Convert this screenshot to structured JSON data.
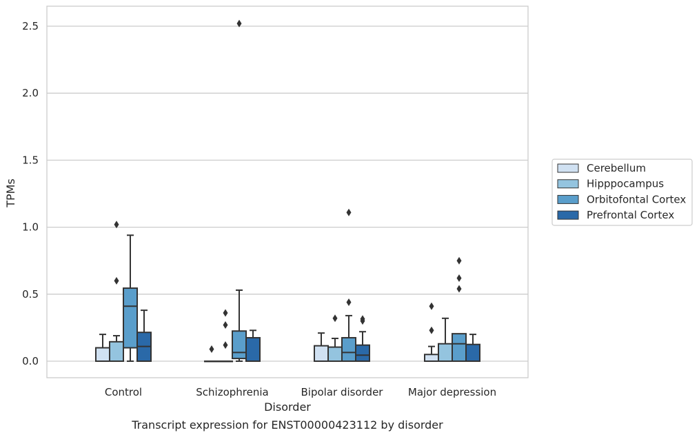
{
  "chart_data": {
    "type": "box",
    "title": "Transcript expression for ENST00000423112 by disorder",
    "xlabel": "Disorder",
    "ylabel": "TPMs",
    "categories": [
      "Control",
      "Schizophrenia",
      "Bipolar disorder",
      "Major depression"
    ],
    "yticks": [
      "0.0",
      "0.5",
      "1.0",
      "1.5",
      "2.0",
      "2.5"
    ],
    "ylim": [
      -0.12,
      2.65
    ],
    "grid": "horizontal",
    "legend_position": "right",
    "series": [
      {
        "name": "Cerebellum",
        "color": "#d0e1f2",
        "boxes": [
          {
            "whisker_low": 0.0,
            "q1": 0.0,
            "median": 0.0,
            "q3": 0.1,
            "whisker_high": 0.2,
            "outliers": []
          },
          {
            "whisker_low": 0.0,
            "q1": 0.0,
            "median": 0.0,
            "q3": 0.0,
            "whisker_high": 0.0,
            "outliers": [
              0.09
            ]
          },
          {
            "whisker_low": 0.0,
            "q1": 0.0,
            "median": 0.0,
            "q3": 0.115,
            "whisker_high": 0.21,
            "outliers": []
          },
          {
            "whisker_low": 0.0,
            "q1": 0.0,
            "median": 0.0,
            "q3": 0.05,
            "whisker_high": 0.11,
            "outliers": [
              0.23,
              0.41
            ]
          }
        ]
      },
      {
        "name": "Hipppocampus",
        "color": "#94c4df",
        "boxes": [
          {
            "whisker_low": 0.0,
            "q1": 0.0,
            "median": 0.0,
            "q3": 0.145,
            "whisker_high": 0.19,
            "outliers": [
              0.6,
              1.02
            ]
          },
          {
            "whisker_low": 0.0,
            "q1": 0.0,
            "median": 0.0,
            "q3": 0.0,
            "whisker_high": 0.0,
            "outliers": [
              0.12,
              0.27,
              0.36
            ]
          },
          {
            "whisker_low": 0.0,
            "q1": 0.0,
            "median": 0.0,
            "q3": 0.105,
            "whisker_high": 0.17,
            "outliers": [
              0.32
            ]
          },
          {
            "whisker_low": 0.0,
            "q1": 0.0,
            "median": 0.0,
            "q3": 0.13,
            "whisker_high": 0.32,
            "outliers": []
          }
        ]
      },
      {
        "name": "Orbitofontal Cortex",
        "color": "#5a9ecb",
        "boxes": [
          {
            "whisker_low": 0.0,
            "q1": 0.1,
            "median": 0.41,
            "q3": 0.545,
            "whisker_high": 0.94,
            "outliers": []
          },
          {
            "whisker_low": 0.0,
            "q1": 0.02,
            "median": 0.065,
            "q3": 0.225,
            "whisker_high": 0.53,
            "outliers": [
              2.52
            ]
          },
          {
            "whisker_low": 0.0,
            "q1": 0.0,
            "median": 0.065,
            "q3": 0.175,
            "whisker_high": 0.34,
            "outliers": [
              0.44,
              1.11
            ]
          },
          {
            "whisker_low": 0.0,
            "q1": 0.0,
            "median": 0.13,
            "q3": 0.205,
            "whisker_high": 0.205,
            "outliers": [
              0.54,
              0.62,
              0.75
            ]
          }
        ]
      },
      {
        "name": "Prefrontal Cortex",
        "color": "#2a69a8",
        "boxes": [
          {
            "whisker_low": 0.0,
            "q1": 0.0,
            "median": 0.11,
            "q3": 0.215,
            "whisker_high": 0.38,
            "outliers": []
          },
          {
            "whisker_low": 0.0,
            "q1": 0.0,
            "median": 0.0,
            "q3": 0.175,
            "whisker_high": 0.23,
            "outliers": []
          },
          {
            "whisker_low": 0.0,
            "q1": 0.0,
            "median": 0.045,
            "q3": 0.12,
            "whisker_high": 0.22,
            "outliers": [
              0.3,
              0.315
            ]
          },
          {
            "whisker_low": 0.0,
            "q1": 0.0,
            "median": 0.0,
            "q3": 0.125,
            "whisker_high": 0.2,
            "outliers": []
          }
        ]
      }
    ]
  }
}
